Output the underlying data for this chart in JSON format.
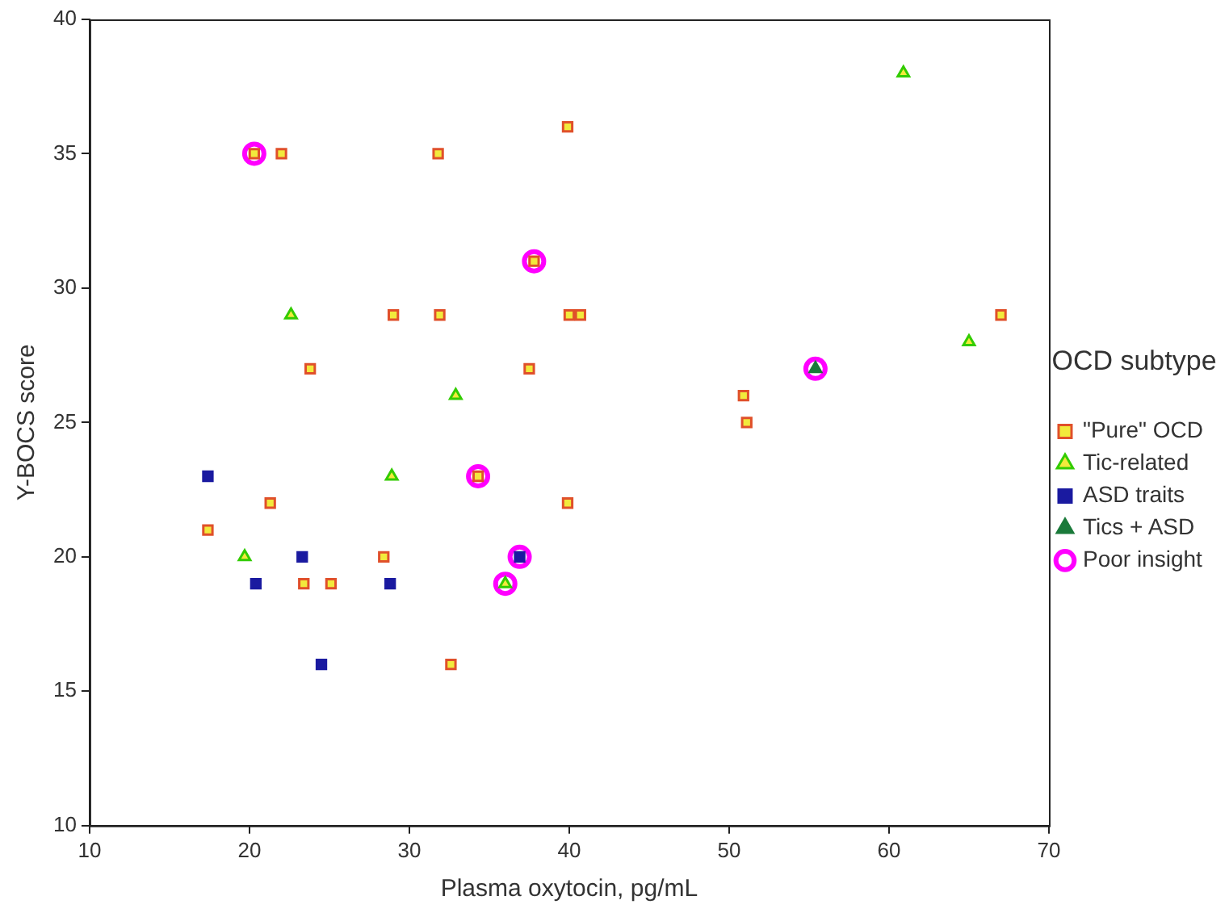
{
  "chart_data": {
    "type": "scatter",
    "xlabel": "Plasma oxytocin, pg/mL",
    "ylabel": "Y-BOCS score",
    "legend_title": "OCD subtype",
    "legend": "right",
    "grid": false,
    "xlim": [
      10,
      70
    ],
    "xticks": [
      10,
      20,
      30,
      40,
      50,
      60,
      70
    ],
    "ylim": [
      10,
      40
    ],
    "yticks": [
      10,
      15,
      20,
      25,
      30,
      35,
      40
    ],
    "series": [
      {
        "name": "\"Pure\" OCD",
        "color": "#e0502a",
        "marker": "square",
        "x": [
          20.3,
          22.0,
          31.8,
          39.9,
          37.8,
          29.0,
          31.9,
          40.0,
          40.7,
          23.8,
          37.5,
          34.3,
          21.3,
          39.9,
          17.4,
          28.4,
          23.4,
          25.1,
          32.6,
          67.0,
          50.9,
          51.1
        ],
        "values": [
          35,
          35,
          35,
          36,
          31,
          29,
          29,
          29,
          29,
          27,
          27,
          23,
          22,
          22,
          21,
          20,
          19,
          19,
          16,
          29,
          26,
          25
        ]
      },
      {
        "name": "Tic-related",
        "color": "#33cc00",
        "marker": "triangle",
        "x": [
          22.6,
          32.9,
          28.9,
          19.7,
          36.0,
          60.9,
          65.0
        ],
        "values": [
          29,
          26,
          23,
          20,
          19,
          38,
          28
        ]
      },
      {
        "name": "ASD traits",
        "color": "#1a1aa0",
        "marker": "square",
        "x": [
          17.4,
          23.3,
          36.9,
          20.4,
          28.8,
          24.5
        ],
        "values": [
          23,
          20,
          20,
          19,
          19,
          16
        ]
      },
      {
        "name": "Tics + ASD",
        "color": "#1a7a3a",
        "marker": "triangle",
        "x": [
          55.4
        ],
        "values": [
          27
        ]
      },
      {
        "name": "Poor insight",
        "color": "#ff00ff",
        "marker": "circle",
        "x": [
          20.3,
          37.8,
          34.3,
          36.9,
          36.0,
          55.4
        ],
        "values": [
          35,
          31,
          23,
          20,
          19,
          27
        ]
      }
    ]
  }
}
